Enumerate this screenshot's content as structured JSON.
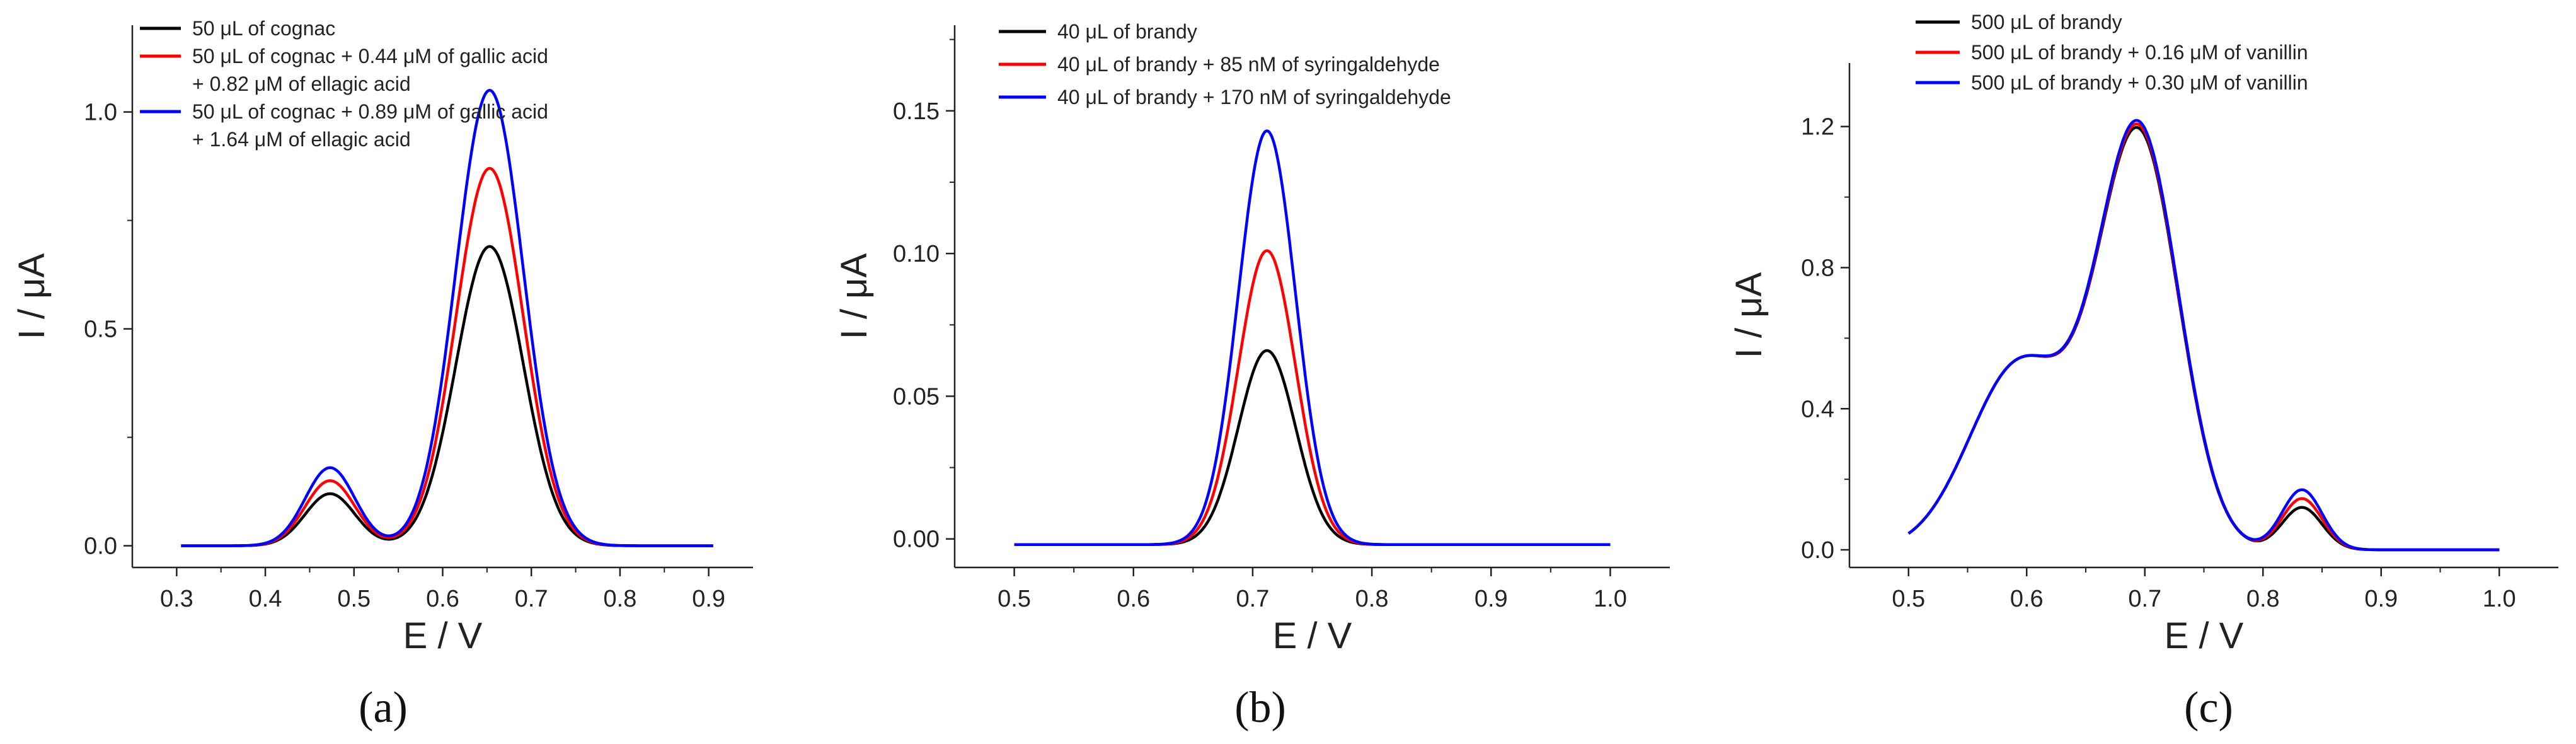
{
  "chart_data": [
    {
      "type": "line",
      "panel_label": "(a)",
      "xlabel": "E / V",
      "ylabel": "I / μA",
      "xlim": [
        0.25,
        0.95
      ],
      "ylim": [
        -0.05,
        1.2
      ],
      "xticks": [
        0.3,
        0.4,
        0.5,
        0.6,
        0.7,
        0.8,
        0.9
      ],
      "yticks": [
        0.0,
        0.5,
        1.0
      ],
      "xtick_labels": [
        "0.3",
        "0.4",
        "0.5",
        "0.6",
        "0.7",
        "0.8",
        "0.9"
      ],
      "ytick_labels": [
        "0.0",
        "0.5",
        "1.0"
      ],
      "x_range_data": [
        0.305,
        0.905
      ],
      "legend_position": "top-left",
      "series": [
        {
          "name": "50 μL of cognac",
          "legend": [
            "50 μL of cognac"
          ],
          "color": "#000000",
          "baseline": 0,
          "peaks": [
            {
              "center": 0.473,
              "height": 0.12,
              "width": 0.028
            },
            {
              "center": 0.653,
              "height": 0.69,
              "width": 0.038
            }
          ]
        },
        {
          "name": "50 μL of cognac + 0.44 μM of gallic acid + 0.82 μM of ellagic acid",
          "legend": [
            "50 μL of cognac + 0.44 μM of gallic acid",
            "+ 0.82 μM of ellagic acid"
          ],
          "color": "#ff0000",
          "baseline": 0,
          "peaks": [
            {
              "center": 0.473,
              "height": 0.15,
              "width": 0.028
            },
            {
              "center": 0.653,
              "height": 0.87,
              "width": 0.038
            }
          ]
        },
        {
          "name": "50 μL of cognac + 0.89 μM of gallic acid + 1.64 μM of ellagic acid",
          "legend": [
            "50 μL of cognac + 0.89 μM of gallic acid",
            "+ 1.64 μM of ellagic acid"
          ],
          "color": "#0000ff",
          "baseline": 0,
          "peaks": [
            {
              "center": 0.473,
              "height": 0.18,
              "width": 0.028
            },
            {
              "center": 0.653,
              "height": 1.05,
              "width": 0.038
            }
          ]
        }
      ]
    },
    {
      "type": "line",
      "panel_label": "(b)",
      "xlabel": "E / V",
      "ylabel": "I / μA",
      "xlim": [
        0.45,
        1.05
      ],
      "ylim": [
        -0.01,
        0.18
      ],
      "xticks": [
        0.5,
        0.6,
        0.7,
        0.8,
        0.9,
        1.0
      ],
      "yticks": [
        0.0,
        0.05,
        0.1,
        0.15
      ],
      "xtick_labels": [
        "0.5",
        "0.6",
        "0.7",
        "0.8",
        "0.9",
        "1.0"
      ],
      "ytick_labels": [
        "0.00",
        "0.05",
        "0.10",
        "0.15"
      ],
      "x_range_data": [
        0.5,
        1.0
      ],
      "legend_position": "top-left",
      "series": [
        {
          "name": "40 μL of brandy",
          "legend": [
            "40 μL of brandy"
          ],
          "color": "#000000",
          "baseline": -0.002,
          "peaks": [
            {
              "center": 0.712,
              "height": 0.068,
              "width": 0.024
            }
          ]
        },
        {
          "name": "40 μL of brandy + 85 nM of syringaldehyde",
          "legend": [
            "40 μL of brandy + 85 nM of syringaldehyde"
          ],
          "color": "#ff0000",
          "baseline": -0.002,
          "peaks": [
            {
              "center": 0.712,
              "height": 0.103,
              "width": 0.024
            }
          ]
        },
        {
          "name": "40 μL of brandy + 170 nM of syringaldehyde",
          "legend": [
            "40 μL of brandy + 170 nM of syringaldehyde"
          ],
          "color": "#0000ff",
          "baseline": -0.002,
          "peaks": [
            {
              "center": 0.712,
              "height": 0.145,
              "width": 0.024
            }
          ]
        }
      ]
    },
    {
      "type": "line",
      "panel_label": "(c)",
      "xlabel": "E / V",
      "ylabel": "I / μA",
      "xlim": [
        0.45,
        1.05
      ],
      "ylim": [
        -0.05,
        1.38
      ],
      "xticks": [
        0.5,
        0.6,
        0.7,
        0.8,
        0.9,
        1.0
      ],
      "yticks": [
        0.0,
        0.4,
        0.8,
        1.2
      ],
      "xtick_labels": [
        "0.5",
        "0.6",
        "0.7",
        "0.8",
        "0.9",
        "1.0"
      ],
      "ytick_labels": [
        "0.0",
        "0.4",
        "0.8",
        "1.2"
      ],
      "x_range_data": [
        0.5,
        1.0
      ],
      "legend_position": "top-left",
      "series": [
        {
          "name": "500 μL of brandy",
          "legend": [
            "500 μL of brandy"
          ],
          "color": "#000000",
          "baseline": 0,
          "peaks": [
            {
              "center": 0.595,
              "height": 0.53,
              "width": 0.043
            },
            {
              "center": 0.695,
              "height": 1.16,
              "width": 0.034
            },
            {
              "center": 0.833,
              "height": 0.12,
              "width": 0.017
            }
          ]
        },
        {
          "name": "500 μL of brandy + 0.16 μM of vanillin",
          "legend": [
            "500 μL of brandy + 0.16 μM of vanillin"
          ],
          "color": "#ff0000",
          "baseline": 0,
          "peaks": [
            {
              "center": 0.595,
              "height": 0.53,
              "width": 0.043
            },
            {
              "center": 0.695,
              "height": 1.17,
              "width": 0.034
            },
            {
              "center": 0.833,
              "height": 0.145,
              "width": 0.017
            }
          ]
        },
        {
          "name": "500 μL of brandy + 0.30 μM of vanillin",
          "legend": [
            "500 μL of brandy + 0.30 μM of vanillin"
          ],
          "color": "#0000ff",
          "baseline": 0,
          "peaks": [
            {
              "center": 0.595,
              "height": 0.53,
              "width": 0.043
            },
            {
              "center": 0.695,
              "height": 1.18,
              "width": 0.034
            },
            {
              "center": 0.833,
              "height": 0.17,
              "width": 0.017
            }
          ]
        }
      ]
    }
  ]
}
